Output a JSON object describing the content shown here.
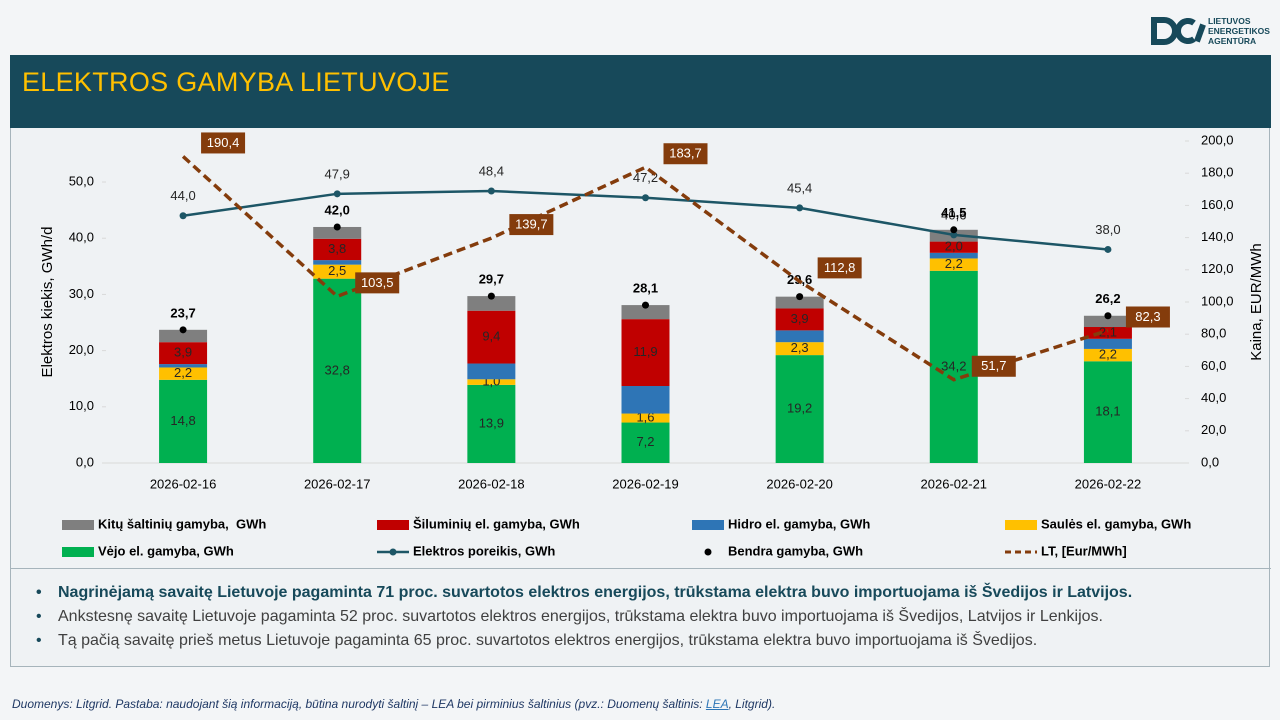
{
  "header": {
    "title": "ELEKTROS GAMYBA LIETUVOJE",
    "logo": [
      "LIETUVOS",
      "ENERGETIKOS",
      "AGENTŪRA"
    ]
  },
  "chart_data": {
    "type": "bar",
    "stacked": true,
    "categories": [
      "2026-02-16",
      "2026-02-17",
      "2026-02-18",
      "2026-02-19",
      "2026-02-20",
      "2026-02-21",
      "2026-02-22"
    ],
    "ylabel": "Elektros kiekis, GWh/d",
    "y2label": "Kaina, EUR/MWh",
    "ylim": [
      0,
      57.3
    ],
    "yticks": [
      {
        "value": 0,
        "label": "0,0"
      },
      {
        "value": 10,
        "label": "10,0"
      },
      {
        "value": 20,
        "label": "20,0"
      },
      {
        "value": 30,
        "label": "30,0"
      },
      {
        "value": 40,
        "label": "40,0"
      },
      {
        "value": 50,
        "label": "50,0"
      }
    ],
    "y2lim": [
      0,
      200
    ],
    "y2ticks": [
      {
        "value": 0,
        "label": "0,0"
      },
      {
        "value": 20,
        "label": "20,0"
      },
      {
        "value": 40,
        "label": "40,0"
      },
      {
        "value": 60,
        "label": "60,0"
      },
      {
        "value": 80,
        "label": "80,0"
      },
      {
        "value": 100,
        "label": "100,0"
      },
      {
        "value": 120,
        "label": "120,0"
      },
      {
        "value": 140,
        "label": "140,0"
      },
      {
        "value": 160,
        "label": "160,0"
      },
      {
        "value": 180,
        "label": "180,0"
      },
      {
        "value": 200,
        "label": "200,0"
      }
    ],
    "series": [
      {
        "name": "Kitų šaltinių gamyba,  GWh",
        "type": "bar",
        "color": "#7f7f7f",
        "values": [
          2.2,
          2.1,
          2.6,
          2.5,
          2.1,
          2.1,
          2.0
        ]
      },
      {
        "name": "Šiluminių el. gamyba, GWh",
        "type": "bar",
        "color": "#c00000",
        "values": [
          3.9,
          3.8,
          9.4,
          11.9,
          3.9,
          2.0,
          2.1
        ],
        "value_labels": [
          "3,9",
          "3,8",
          "9,4",
          "11,9",
          "3,9",
          "2,0",
          "2,1"
        ]
      },
      {
        "name": "Hidro el. gamyba, GWh",
        "type": "bar",
        "color": "#2e75b6",
        "values": [
          0.6,
          0.8,
          2.8,
          4.9,
          2.1,
          1.0,
          1.8
        ]
      },
      {
        "name": "Saulės el. gamyba, GWh",
        "type": "bar",
        "color": "#ffc000",
        "values": [
          2.2,
          2.5,
          1.0,
          1.6,
          2.3,
          2.2,
          2.2
        ],
        "value_labels": [
          "2,2",
          "2,5",
          "1,0",
          "1,6",
          "2,3",
          "2,2",
          "2,2"
        ]
      },
      {
        "name": "Vėjo el. gamyba, GWh",
        "type": "bar",
        "color": "#00b050",
        "values": [
          14.8,
          32.8,
          13.9,
          7.2,
          19.2,
          34.2,
          18.1
        ],
        "value_labels": [
          "14,8",
          "32,8",
          "13,9",
          "7,2",
          "19,2",
          "34,2",
          "18,1"
        ]
      },
      {
        "name": "Elektros poreikis, GWh",
        "type": "line",
        "color": "#1d5666",
        "values": [
          44.0,
          47.9,
          48.4,
          47.2,
          45.4,
          40.6,
          38.0
        ],
        "value_labels": [
          "44,0",
          "47,9",
          "48,4",
          "47,2",
          "45,4",
          "40,6",
          "38,0"
        ]
      },
      {
        "name": "Bendra gamyba, GWh",
        "type": "scatter",
        "color": "#000000",
        "values": [
          23.7,
          42.0,
          29.7,
          28.1,
          29.6,
          41.5,
          26.2
        ],
        "value_labels": [
          "23,7",
          "42,0",
          "29,7",
          "28,1",
          "29,6",
          "41,5",
          "26,2"
        ]
      },
      {
        "name": "LT, [Eur/MWh]",
        "type": "line",
        "axis": "y2",
        "dashed": true,
        "color": "#843c0c",
        "values": [
          190.4,
          103.5,
          139.7,
          183.7,
          112.8,
          51.7,
          82.3
        ],
        "value_labels": [
          "190,4",
          "103,5",
          "139,7",
          "183,7",
          "112,8",
          "51,7",
          "82,3"
        ]
      }
    ]
  },
  "notes": [
    "Nagrinėjamą savaitę Lietuvoje pagaminta 71 proc. suvartotos elektros energijos, trūkstama elektra buvo importuojama iš Švedijos ir Latvijos.",
    "Ankstesnę savaitę Lietuvoje pagaminta 52 proc. suvartotos elektros energijos, trūkstama elektra buvo importuojama iš Švedijos, Latvijos ir Lenkijos.",
    "Tą pačią savaitę prieš metus Lietuvoje pagaminta 65 proc. suvartotos elektros energijos, trūkstama elektra buvo importuojama iš Švedijos."
  ],
  "footer": {
    "text": "Duomenys: Litgrid. Pastaba: naudojant šią informaciją, būtina nurodyti šaltinį – LEA bei pirminius šaltinius (pvz.: Duomenų šaltinis: ",
    "link": "LEA",
    "text_after": ", Litgrid)."
  }
}
